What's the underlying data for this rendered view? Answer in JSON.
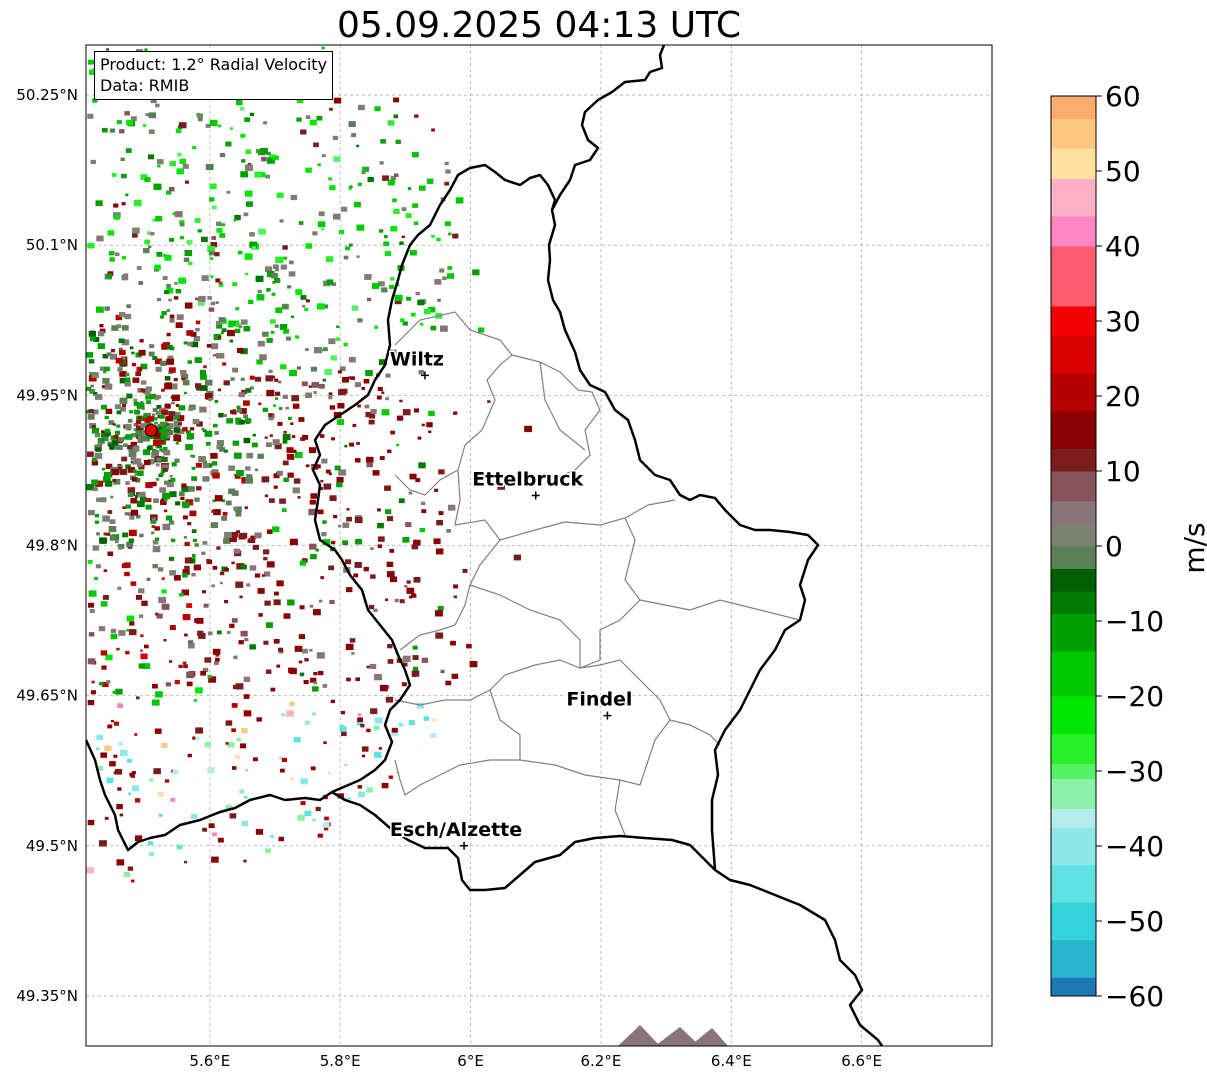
{
  "title": "05.09.2025 04:13 UTC",
  "info": {
    "product": "Product: 1.2° Radial Velocity",
    "data_source": "Data: RMIB"
  },
  "axes": {
    "lon_ticks": [
      "5.6°E",
      "5.8°E",
      "6°E",
      "6.2°E",
      "6.4°E",
      "6.6°E"
    ],
    "lat_ticks": [
      "50.25°N",
      "50.1°N",
      "49.95°N",
      "49.8°N",
      "49.65°N",
      "49.5°N",
      "49.35°N"
    ],
    "lon_values": [
      5.6,
      5.8,
      6.0,
      6.2,
      6.4,
      6.6
    ],
    "lat_values": [
      50.25,
      50.1,
      49.95,
      49.8,
      49.65,
      49.5,
      49.35
    ],
    "lon_range": [
      5.41,
      6.8
    ],
    "lat_range": [
      49.3,
      50.3
    ]
  },
  "cities": [
    {
      "name": "Wiltz",
      "lon": 5.93,
      "lat": 49.97
    },
    {
      "name": "Ettelbruck",
      "lon": 6.1,
      "lat": 49.85
    },
    {
      "name": "Findel",
      "lon": 6.21,
      "lat": 49.63
    },
    {
      "name": "Esch/Alzette",
      "lon": 5.99,
      "lat": 49.5
    }
  ],
  "radar_site": {
    "lon": 5.51,
    "lat": 49.915
  },
  "colorbar": {
    "min": -60,
    "max": 60,
    "ticks": [
      "60",
      "50",
      "40",
      "30",
      "20",
      "10",
      "0",
      "−10",
      "−20",
      "−30",
      "−40",
      "−50",
      "−60"
    ],
    "tick_values": [
      60,
      50,
      40,
      30,
      20,
      10,
      0,
      -10,
      -20,
      -30,
      -40,
      -50,
      -60
    ],
    "label": "m/s",
    "colors_bottom_to_top": [
      "#1f78b4",
      "#2ab5cf",
      "#35d4dd",
      "#5fe2e2",
      "#8ee8e8",
      "#b5eded",
      "#8cf0a8",
      "#55f265",
      "#28f028",
      "#00e600",
      "#00c800",
      "#00a000",
      "#007a00",
      "#006000",
      "#5b8057",
      "#7b8070",
      "#897477",
      "#86545b",
      "#7a1c1c",
      "#8b0000",
      "#b50000",
      "#d80000",
      "#f20000",
      "#ff5a6e",
      "#ff84c4",
      "#ffb0c4",
      "#ffe0a0",
      "#ffc882",
      "#ffaa6e",
      "#ff9a52"
    ],
    "color_stops": [
      -60,
      -57.5,
      -52.5,
      -47.5,
      -42.5,
      -37.5,
      -35,
      -31,
      -29,
      -25,
      -20,
      -14,
      -9,
      -6,
      -3,
      0,
      3,
      6,
      10,
      13,
      18,
      23,
      28,
      32,
      40,
      44,
      49,
      53,
      57,
      60
    ]
  },
  "colors": {
    "border_country": "#000000",
    "border_canton": "#808080",
    "grid": "#b0b0b0",
    "radar_site": "#e00000"
  }
}
